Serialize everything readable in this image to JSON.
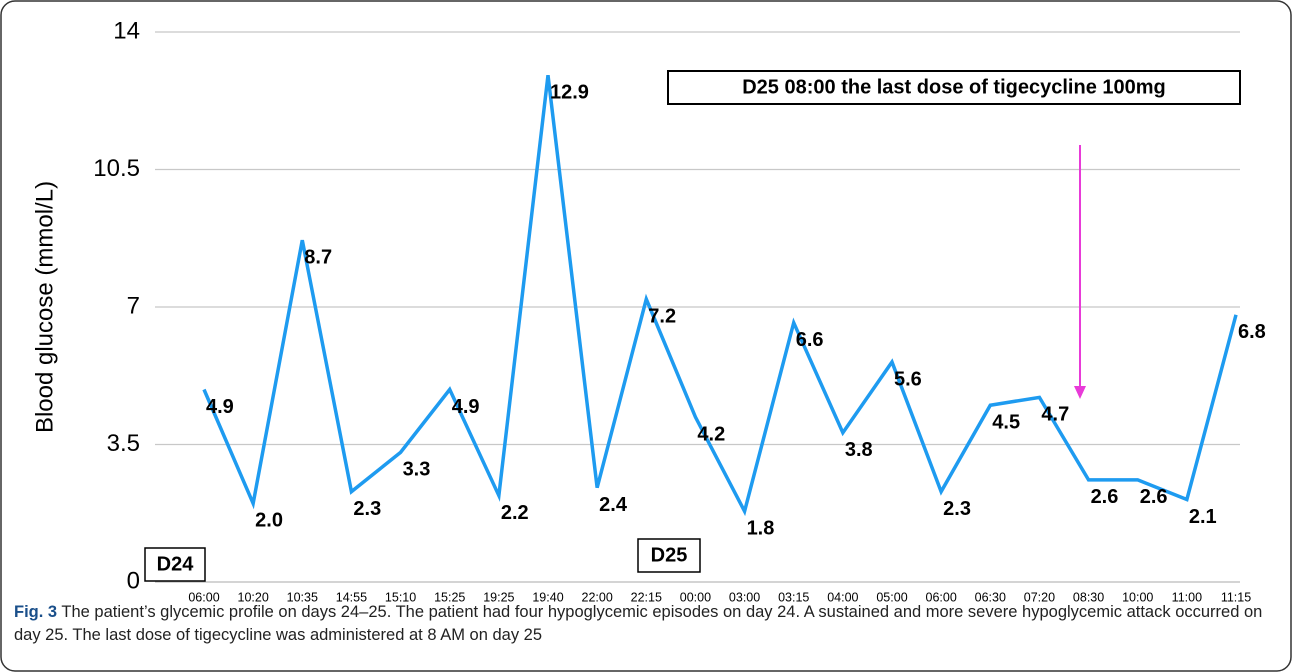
{
  "chart_data": {
    "type": "line",
    "y_label": "Blood glucose (mmol/L)",
    "categories": [
      "06:00",
      "10:20",
      "10:35",
      "14:55",
      "15:10",
      "15:25",
      "19:25",
      "19:40",
      "22:00",
      "22:15",
      "00:00",
      "03:00",
      "03:15",
      "04:00",
      "05:00",
      "06:00",
      "06:30",
      "07:20",
      "08:30",
      "10:00",
      "11:00",
      "11:15"
    ],
    "series": [
      {
        "name": "Blood glucose",
        "color": "#1e9bf0",
        "values": [
          4.9,
          2.0,
          8.7,
          2.3,
          3.3,
          4.9,
          2.2,
          12.9,
          2.4,
          7.2,
          4.2,
          1.8,
          6.6,
          3.8,
          5.6,
          2.3,
          4.5,
          4.7,
          2.6,
          2.6,
          2.1,
          6.8
        ],
        "value_labels": [
          "4.9",
          "2.0",
          "8.7",
          "2.3",
          "3.3",
          "4.9",
          "2.2",
          "12.9",
          "2.4",
          "7.2",
          "4.2",
          "1.8",
          "6.6",
          "3.8",
          "5.6",
          "2.3",
          "4.5",
          "4.7",
          "2.6",
          "2.6",
          "2.1",
          "6.8"
        ]
      }
    ],
    "ylim": [
      0,
      14
    ],
    "yticks": [
      0,
      3.5,
      7,
      10.5,
      14
    ],
    "grid": true,
    "annotations": [
      "D25 08:00 the last dose of tigecycline 100mg",
      "D24",
      "D25"
    ],
    "caption_label": "Fig. 3",
    "caption": "The patient’s glycemic profile on days 24–25. The patient had four hypoglycemic episodes on day 24. A sustained and more severe hypoglycemic attack occurred on day 25. The last dose of tigecycline was administered at 8 AM on day 25"
  }
}
